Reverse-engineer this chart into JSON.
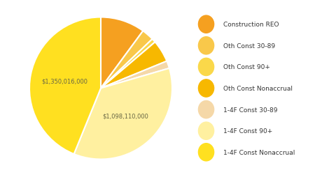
{
  "labels": [
    "Construction REO",
    "Oth Const 30-89",
    "Oth Const 90+",
    "Oth Const Nonaccrual",
    "1-4F Const 30-89",
    "1-4F Const 90+",
    "1-4F Const Nonaccrual"
  ],
  "values": [
    310000000,
    85000000,
    28000000,
    155000000,
    52000000,
    1098110000,
    1350016000
  ],
  "colors": [
    "#F5A020",
    "#F9C84A",
    "#FAD84A",
    "#F7B800",
    "#F5D8A8",
    "#FFF0A0",
    "#FFE020"
  ],
  "background_color": "#ffffff",
  "text_color": "#666644",
  "label_90_text": "$1,098,110,000",
  "label_nac_text": "$1,350,016,000",
  "label_90_idx": 5,
  "label_nac_idx": 6,
  "startangle": 90,
  "legend_dot_colors": [
    "#F5A020",
    "#F9C84A",
    "#FAD84A",
    "#F7B800",
    "#F5D8A8",
    "#FFF0A0",
    "#FFE020"
  ]
}
